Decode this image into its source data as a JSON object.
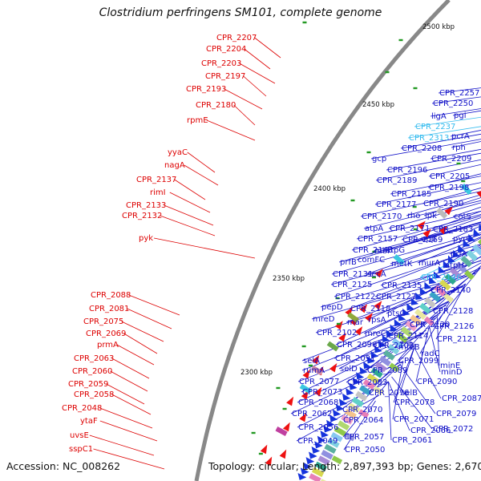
{
  "title": "Clostridium perfringens SM101, complete genome",
  "accession_text": "Accession: NC_008262",
  "topology_text": "Topology: circular; Length: 2,897,393 bp; Genes: 2,670",
  "colors": {
    "left_label": "#dd0000",
    "right_label": "#1010c8",
    "highlight_label": "#33bbee",
    "backbone": "#888888",
    "strand_arrow": "#1633dd",
    "gene_arrow": "#ee1111",
    "tick": "#229922"
  },
  "ruler": [
    {
      "id": "2300",
      "label": "2300 kbp"
    },
    {
      "id": "2350",
      "label": "2350 kbp"
    },
    {
      "id": "2400",
      "label": "2400 kbp"
    },
    {
      "id": "2450",
      "label": "2450 kbp"
    },
    {
      "id": "2500",
      "label": "2500 kbp"
    }
  ],
  "left_labels": [
    "CPR_2207",
    "CPR_2204",
    "CPR_2203",
    "CPR_2197",
    "CPR_2193",
    "CPR_2180",
    "rpmE",
    "yyaC",
    "nagA",
    "CPR_2137",
    "rimI",
    "CPR_2133",
    "CPR_2132",
    "pyk",
    "CPR_2088",
    "CPR_2081",
    "CPR_2075",
    "CPR_2069",
    "prmA",
    "CPR_2063",
    "CPR_2060",
    "CPR_2059",
    "CPR_2058",
    "CPR_2048",
    "ytaF",
    "uvsE",
    "sspC1"
  ],
  "right_labels": [
    "CPR_2257",
    "CPR_2250",
    "ligA",
    "pgi",
    "pcrA",
    "CPR_2237",
    "CPR_2313",
    "rph",
    "CPR_2208",
    "gcp",
    "CPR_2209",
    "CPR_2196",
    "CPR_2205",
    "CPR_2189",
    "CPR_2198",
    "CPR_2185",
    "CPR_2177",
    "CPR_2190",
    "rho",
    "ipk",
    "cotS",
    "CPR_2170",
    "atpA",
    "CPR_2171",
    "CPR_2183",
    "CPR_2157",
    "CPR_2169",
    "upp",
    "pyrG",
    "CPR_2143",
    "mbl",
    "atpG",
    "prfA",
    "prfB",
    "comFC",
    "metK",
    "murA",
    "atpH",
    "CPR_2131",
    "secA",
    "CPR_2146",
    "CPR_2125",
    "CPR_2135",
    "CPR_2140",
    "CPR_2122",
    "CPR_2127",
    "pepD",
    "CPR_2118",
    "ptsG",
    "CPR_2128",
    "mreD",
    "mar",
    "rpsA",
    "CPR_2120",
    "CPR_2126",
    "CPR_2102",
    "mreC",
    "CPR_2114",
    "CPR_2121",
    "CPR_2096",
    "CPR_2103",
    "mreB",
    "radC",
    "selA",
    "CPR_2091",
    "CPR_2099",
    "minE",
    "rumA",
    "selD",
    "CPR_2089",
    "minD",
    "CPR_2077",
    "CPR_2083",
    "CPR_2090",
    "CPR_2073",
    "CPR_2076",
    "selB",
    "CPR_2087",
    "CPR_2068",
    "CPR_2078",
    "CPR_2070",
    "CPR_2079",
    "CPR_2062",
    "CPR_2064",
    "CPR_2071",
    "CPR_2056",
    "CPR_2066",
    "CPR_2072",
    "CPR_2057",
    "CPR_2061",
    "CPR_2049",
    "CPR_2050"
  ]
}
